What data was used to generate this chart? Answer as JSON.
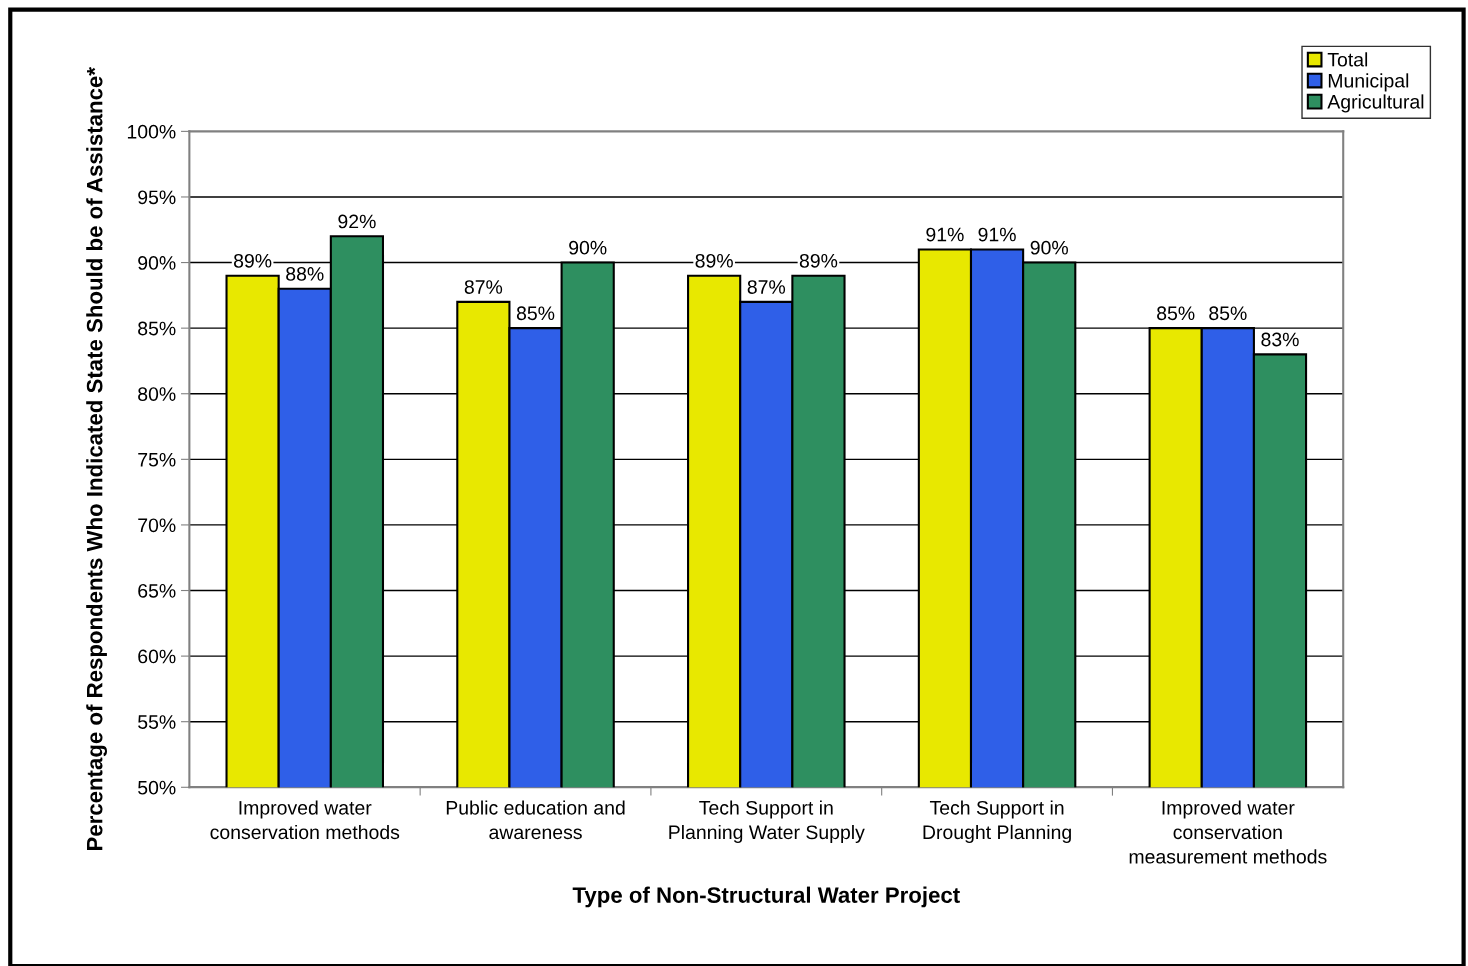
{
  "chart_data": {
    "type": "bar",
    "xlabel": "Type of Non-Structural Water Project",
    "ylabel": "Percentage of Respondents Who Indicated State Should be of Assistance*",
    "categories": [
      "Improved water\nconservation methods",
      "Public education and\nawareness",
      "Tech Support in\nPlanning Water Supply",
      "Tech Support in\nDrought Planning",
      "Improved water\nconservation\nmeasurement methods"
    ],
    "series": [
      {
        "name": "Total",
        "color": "#e8e800",
        "values": [
          89,
          87,
          89,
          91,
          85
        ],
        "value_labels": [
          "89%",
          "87%",
          "89%",
          "91%",
          "85%"
        ]
      },
      {
        "name": "Municipal",
        "color": "#2f5fe8",
        "values": [
          88,
          85,
          87,
          91,
          85
        ],
        "value_labels": [
          "88%",
          "85%",
          "87%",
          "91%",
          "85%"
        ]
      },
      {
        "name": "Agricultural",
        "color": "#2e8f60",
        "values": [
          92,
          90,
          89,
          90,
          83
        ],
        "value_labels": [
          "92%",
          "90%",
          "89%",
          "90%",
          "83%"
        ]
      }
    ],
    "ylim": [
      50,
      100
    ],
    "yticks": [
      {
        "value": 50,
        "label": "50%"
      },
      {
        "value": 55,
        "label": "55%"
      },
      {
        "value": 60,
        "label": "60%"
      },
      {
        "value": 65,
        "label": "65%"
      },
      {
        "value": 70,
        "label": "70%"
      },
      {
        "value": 75,
        "label": "75%"
      },
      {
        "value": 80,
        "label": "80%"
      },
      {
        "value": 85,
        "label": "85%"
      },
      {
        "value": 90,
        "label": "90%"
      },
      {
        "value": 95,
        "label": "95%"
      },
      {
        "value": 100,
        "label": "100%"
      }
    ],
    "grid": "y",
    "legend": "top right"
  }
}
